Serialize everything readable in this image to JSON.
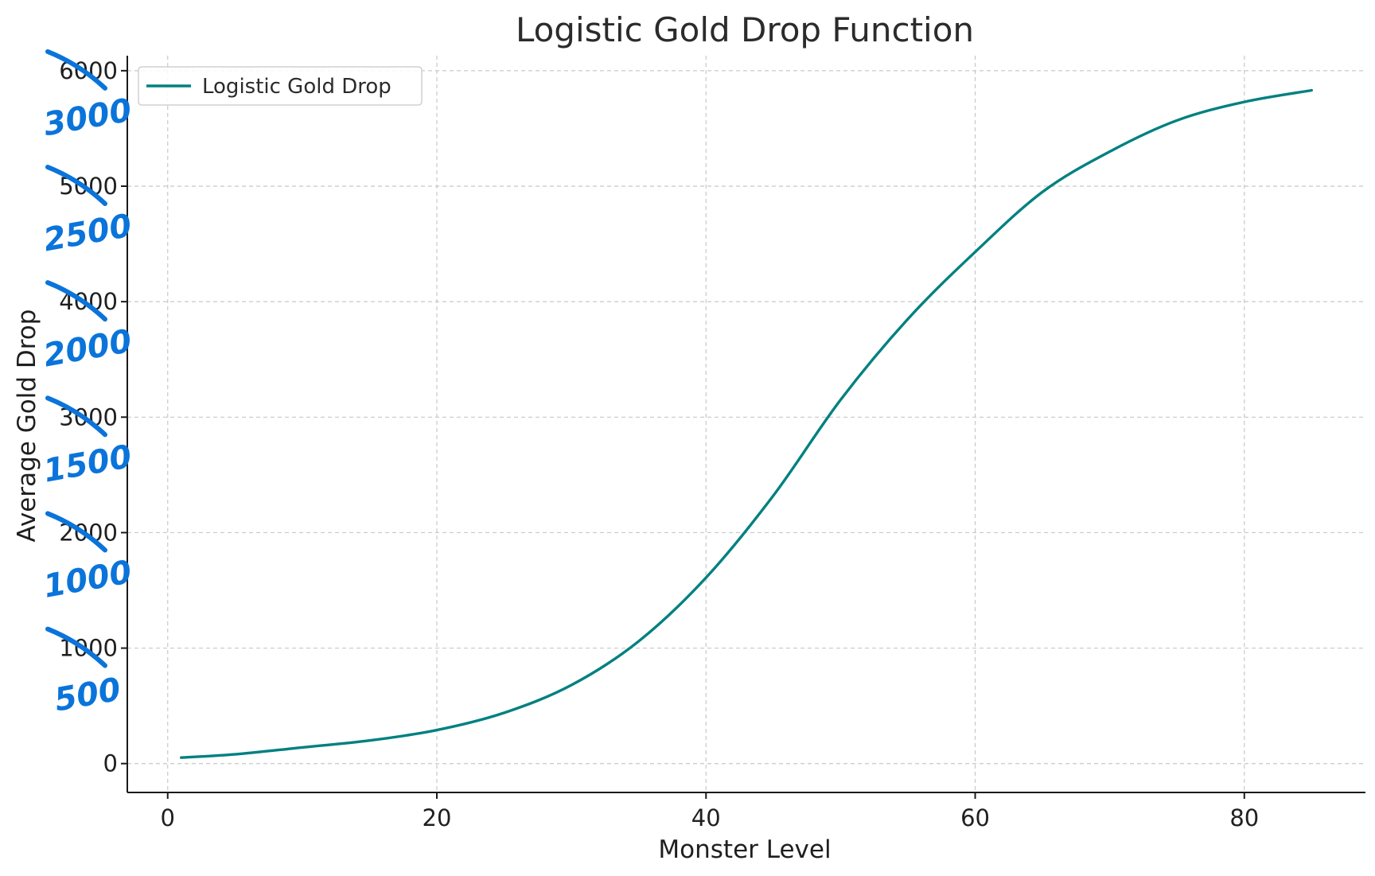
{
  "colors": {
    "series": "#008080",
    "annotation": "#0a74da",
    "axis": "#1a1a1a",
    "grid": "#c8c8c8"
  },
  "chart_data": {
    "type": "line",
    "title": "Logistic Gold Drop Function",
    "xlabel": "Monster Level",
    "ylabel": "Average Gold Drop",
    "xlim": [
      -3,
      89
    ],
    "ylim": [
      -250,
      6130
    ],
    "x_ticks": [
      0,
      20,
      40,
      60,
      80
    ],
    "x_tick_labels": [
      "0",
      "20",
      "40",
      "60",
      "80"
    ],
    "y_ticks": [
      0,
      1000,
      2000,
      3000,
      4000,
      5000,
      6000
    ],
    "y_tick_labels": [
      "0",
      "1000",
      "2000",
      "3000",
      "4000",
      "5000",
      "6000"
    ],
    "grid": true,
    "legend_position": "top-left",
    "series": [
      {
        "name": "Logistic Gold Drop",
        "color": "#008080",
        "x": [
          1,
          5,
          10,
          15,
          20,
          25,
          30,
          35,
          40,
          45,
          50,
          55,
          60,
          65,
          70,
          75,
          80,
          85
        ],
        "y": [
          52,
          80,
          140,
          200,
          290,
          440,
          680,
          1060,
          1610,
          2320,
          3150,
          3850,
          4430,
          4950,
          5300,
          5570,
          5730,
          5830
        ]
      }
    ],
    "handwritten_annotations": {
      "description": "Handwritten blue relabeling: each y tick is struck through and replaced with half its value",
      "labels": [
        {
          "tick": 6000,
          "text": "3000"
        },
        {
          "tick": 5000,
          "text": "2500"
        },
        {
          "tick": 4000,
          "text": "2000"
        },
        {
          "tick": 3000,
          "text": "1500"
        },
        {
          "tick": 2000,
          "text": "1000"
        },
        {
          "tick": 1000,
          "text": "500"
        }
      ]
    }
  }
}
